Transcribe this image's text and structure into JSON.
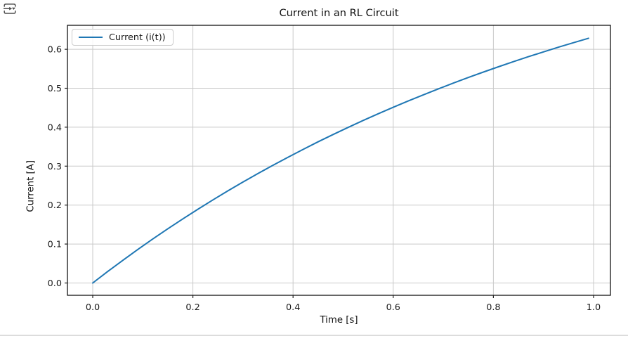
{
  "icons": {
    "corner_button": "export-plot-icon"
  },
  "chart_data": {
    "type": "line",
    "title": "Current in an RL Circuit",
    "xlabel": "Time [s]",
    "ylabel": "Current [A]",
    "grid": true,
    "legend_position": "upper left",
    "series": [
      {
        "name": "Current (i(t))",
        "color": "#1f77b4",
        "x": [
          0.0,
          0.03,
          0.06,
          0.09,
          0.12,
          0.15,
          0.18,
          0.21,
          0.24,
          0.27,
          0.3,
          0.33,
          0.36,
          0.39,
          0.42,
          0.45,
          0.48,
          0.51,
          0.54,
          0.57,
          0.6,
          0.63,
          0.66,
          0.69,
          0.72,
          0.75,
          0.78,
          0.81,
          0.84,
          0.87,
          0.9,
          0.93,
          0.96,
          0.99
        ],
        "y": [
          0.0,
          0.0296,
          0.0582,
          0.0861,
          0.1131,
          0.1393,
          0.1647,
          0.1894,
          0.2134,
          0.2366,
          0.2592,
          0.2811,
          0.3023,
          0.3229,
          0.343,
          0.3624,
          0.3812,
          0.3995,
          0.4173,
          0.4345,
          0.4512,
          0.4674,
          0.4831,
          0.4984,
          0.5132,
          0.5276,
          0.5416,
          0.5551,
          0.5683,
          0.581,
          0.5934,
          0.6054,
          0.6171,
          0.6284
        ]
      }
    ],
    "xticks": {
      "values": [
        0.0,
        0.2,
        0.4,
        0.6,
        0.8,
        1.0
      ],
      "labels": [
        "0.0",
        "0.2",
        "0.4",
        "0.6",
        "0.8",
        "1.0"
      ]
    },
    "yticks": {
      "values": [
        0.0,
        0.1,
        0.2,
        0.3,
        0.4,
        0.5,
        0.6
      ],
      "labels": [
        "0.0",
        "0.1",
        "0.2",
        "0.3",
        "0.4",
        "0.5",
        "0.6"
      ]
    },
    "xlim": [
      -0.0505,
      1.0337
    ],
    "ylim": [
      -0.0316,
      0.6616
    ]
  }
}
